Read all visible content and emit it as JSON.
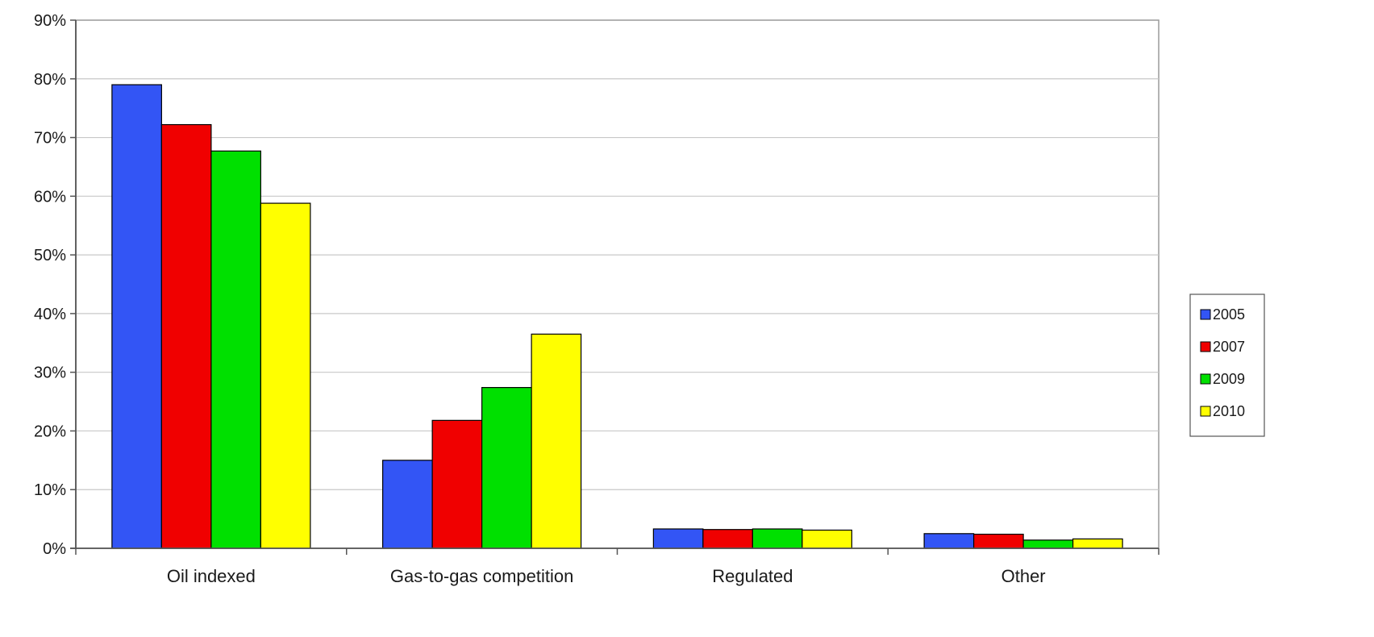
{
  "chart_data": {
    "type": "bar",
    "title": "",
    "xlabel": "",
    "ylabel": "",
    "categories": [
      "Oil indexed",
      "Gas-to-gas competition",
      "Regulated",
      "Other"
    ],
    "series": [
      {
        "name": "2005",
        "color": "#3355f5",
        "values": [
          79,
          15,
          3.3,
          2.5
        ]
      },
      {
        "name": "2007",
        "color": "#f00000",
        "values": [
          72.2,
          21.8,
          3.2,
          2.4
        ]
      },
      {
        "name": "2009",
        "color": "#00e000",
        "values": [
          67.7,
          27.4,
          3.3,
          1.4
        ]
      },
      {
        "name": "2010",
        "color": "#ffff00",
        "values": [
          58.8,
          36.5,
          3.1,
          1.6
        ]
      }
    ],
    "yticks": [
      "0%",
      "10%",
      "20%",
      "30%",
      "40%",
      "50%",
      "60%",
      "70%",
      "80%",
      "90%"
    ],
    "ylim": [
      0,
      90
    ],
    "grid": true,
    "legend_position": "right"
  }
}
